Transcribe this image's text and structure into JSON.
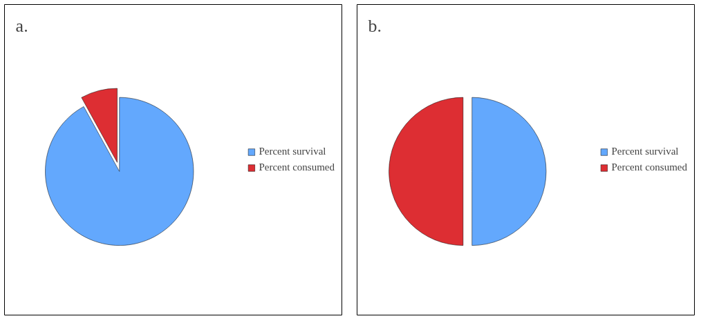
{
  "chart_data": [
    {
      "type": "pie",
      "title": "a.",
      "categories": [
        "Percent survival",
        "Percent consumed"
      ],
      "values": [
        92,
        8
      ],
      "colors": [
        "#63a8fd",
        "#dd2e33"
      ],
      "legend": "right"
    },
    {
      "type": "pie",
      "title": "b.",
      "categories": [
        "Percent survival",
        "Percent consumed"
      ],
      "values": [
        50,
        50
      ],
      "colors": [
        "#63a8fd",
        "#dd2e33"
      ],
      "legend": "right"
    }
  ]
}
